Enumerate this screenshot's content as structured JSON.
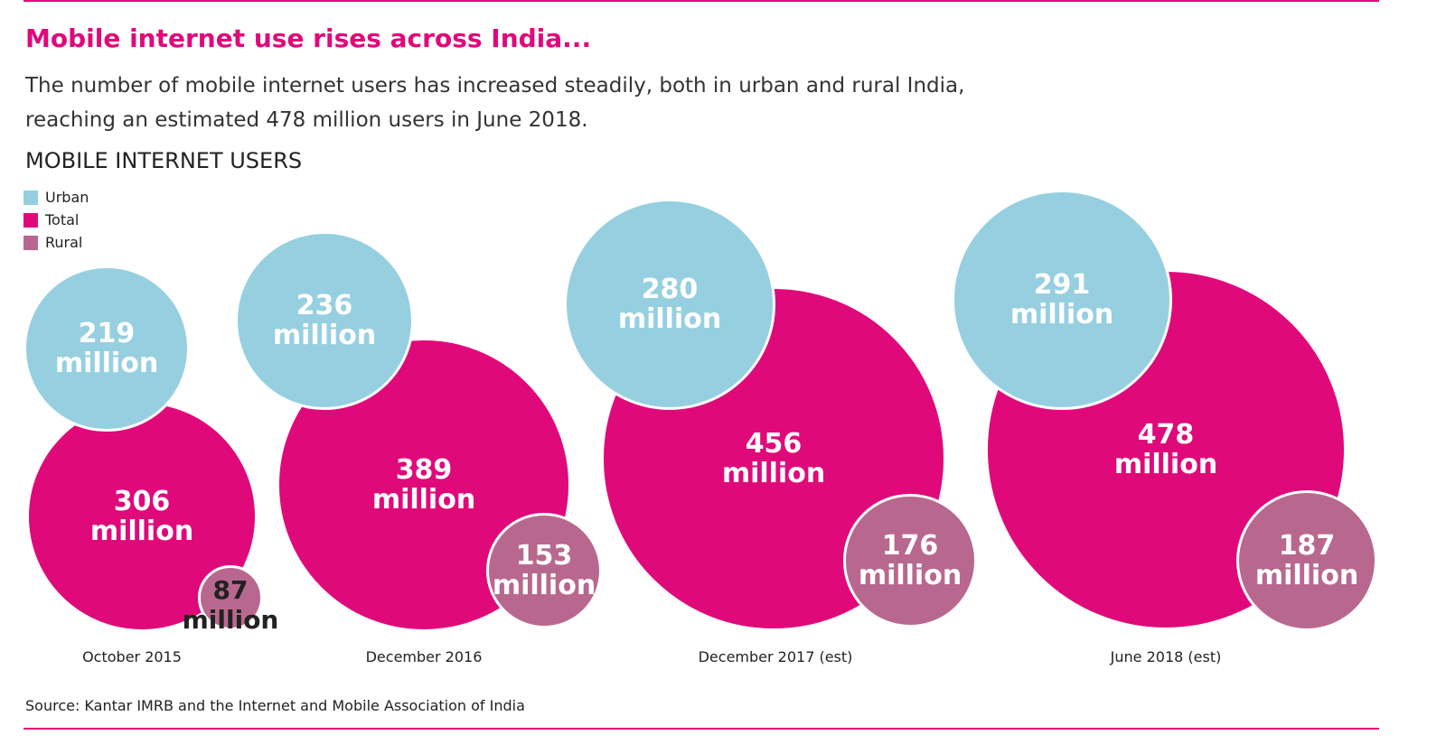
{
  "chart_data": {
    "type": "bubble",
    "title": "Mobile internet use rises across India...",
    "subtitle": "The number of mobile internet users has increased steadily, both in urban and rural India, reaching an estimated 478 million users in June 2018.",
    "heading": "MOBILE INTERNET USERS",
    "categories": [
      "October 2015",
      "December 2016",
      "December 2017 (est)",
      "June 2018 (est)"
    ],
    "series": [
      {
        "name": "Urban",
        "color": "#96d0e0",
        "values": [
          219,
          236,
          280,
          291
        ],
        "value_labels": [
          "219 million",
          "236 million",
          "280 million",
          "291 million"
        ]
      },
      {
        "name": "Total",
        "color": "#e0097a",
        "values": [
          306,
          389,
          456,
          478
        ],
        "value_labels": [
          "306 million",
          "389 million",
          "456 million",
          "478 million"
        ]
      },
      {
        "name": "Rural",
        "color": "#b8688f",
        "values": [
          87,
          153,
          176,
          187
        ],
        "value_labels": [
          "87 million",
          "153 million",
          "176 million",
          "187 million"
        ]
      }
    ],
    "source": "Source: Kantar IMRB and the Internet and Mobile Association of India"
  }
}
